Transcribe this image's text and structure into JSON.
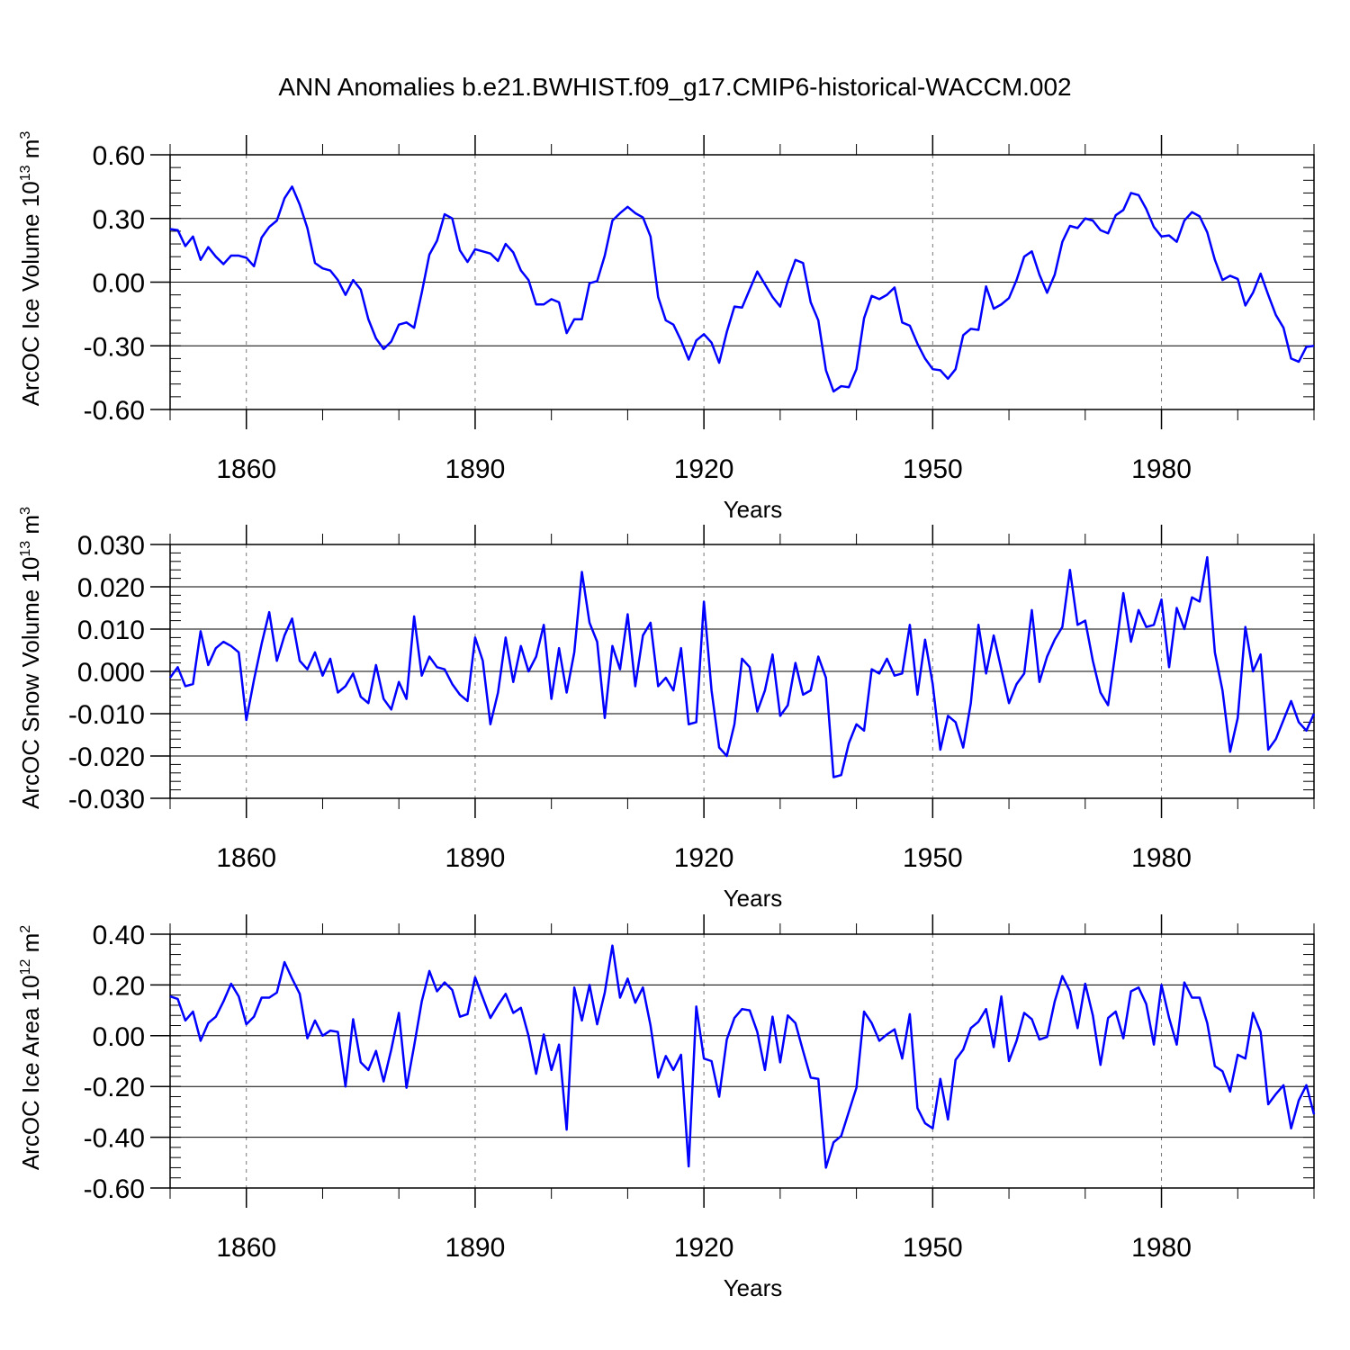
{
  "title": "ANN Anomalies b.e21.BWHIST.f09_g17.CMIP6-historical-WACCM.002",
  "colors": {
    "line": "#0000ff",
    "axis": "#000000",
    "grid": "#777777"
  },
  "chart_data": [
    {
      "type": "line",
      "ylabel": {
        "main": "ArcOC Ice Volume 10",
        "sup": "13",
        "unit": " m",
        "unit_sup": "3"
      },
      "xlabel": "Years",
      "xlim": [
        1850,
        2000
      ],
      "ylim": [
        -0.6,
        0.6
      ],
      "xticks": [
        1860,
        1890,
        1920,
        1950,
        1980
      ],
      "yticks": [
        "0.60",
        "0.30",
        "0.00",
        "-0.30",
        "-0.60"
      ],
      "ytick_values": [
        0.6,
        0.3,
        0.0,
        -0.3,
        -0.6
      ],
      "series": [
        {
          "name": "ArcOC Ice Volume",
          "x_start": 1850,
          "values": [
            0.25,
            0.245,
            0.17,
            0.215,
            0.105,
            0.165,
            0.12,
            0.085,
            0.125,
            0.125,
            0.115,
            0.075,
            0.21,
            0.26,
            0.29,
            0.395,
            0.45,
            0.365,
            0.255,
            0.09,
            0.065,
            0.055,
            0.01,
            -0.06,
            0.01,
            -0.035,
            -0.175,
            -0.265,
            -0.315,
            -0.28,
            -0.2,
            -0.19,
            -0.215,
            -0.05,
            0.13,
            0.195,
            0.32,
            0.3,
            0.15,
            0.095,
            0.155,
            0.145,
            0.135,
            0.1,
            0.18,
            0.14,
            0.055,
            0.01,
            -0.105,
            -0.105,
            -0.08,
            -0.095,
            -0.24,
            -0.175,
            -0.175,
            -0.005,
            0.005,
            0.125,
            0.29,
            0.325,
            0.355,
            0.325,
            0.305,
            0.215,
            -0.07,
            -0.18,
            -0.2,
            -0.275,
            -0.365,
            -0.275,
            -0.245,
            -0.285,
            -0.38,
            -0.235,
            -0.115,
            -0.12,
            -0.035,
            0.05,
            -0.01,
            -0.07,
            -0.115,
            0.005,
            0.105,
            0.09,
            -0.095,
            -0.18,
            -0.415,
            -0.515,
            -0.49,
            -0.495,
            -0.41,
            -0.17,
            -0.065,
            -0.08,
            -0.06,
            -0.025,
            -0.19,
            -0.205,
            -0.29,
            -0.36,
            -0.41,
            -0.415,
            -0.455,
            -0.41,
            -0.25,
            -0.22,
            -0.225,
            -0.02,
            -0.125,
            -0.105,
            -0.075,
            0.01,
            0.12,
            0.145,
            0.035,
            -0.05,
            0.035,
            0.19,
            0.265,
            0.255,
            0.3,
            0.29,
            0.245,
            0.23,
            0.315,
            0.34,
            0.42,
            0.41,
            0.345,
            0.26,
            0.215,
            0.22,
            0.19,
            0.29,
            0.33,
            0.31,
            0.235,
            0.105,
            0.01,
            0.03,
            0.015,
            -0.11,
            -0.05,
            0.04,
            -0.06,
            -0.155,
            -0.215,
            -0.36,
            -0.375,
            -0.305,
            -0.3
          ]
        }
      ]
    },
    {
      "type": "line",
      "ylabel": {
        "main": "ArcOC Snow Volume 10",
        "sup": "13",
        "unit": " m",
        "unit_sup": "3"
      },
      "xlabel": "Years",
      "xlim": [
        1850,
        2000
      ],
      "ylim": [
        -0.03,
        0.03
      ],
      "xticks": [
        1860,
        1890,
        1920,
        1950,
        1980
      ],
      "yticks": [
        "0.030",
        "0.020",
        "0.010",
        "0.000",
        "-0.010",
        "-0.020",
        "-0.030"
      ],
      "ytick_values": [
        0.03,
        0.02,
        0.01,
        0.0,
        -0.01,
        -0.02,
        -0.03
      ],
      "series": [
        {
          "name": "ArcOC Snow Volume",
          "x_start": 1850,
          "values": [
            -0.0015,
            0.001,
            -0.0035,
            -0.003,
            0.0095,
            0.0015,
            0.0055,
            0.007,
            0.006,
            0.0045,
            -0.0115,
            -0.002,
            0.0065,
            0.014,
            0.0025,
            0.0085,
            0.0125,
            0.0025,
            0.0005,
            0.0045,
            -0.001,
            0.003,
            -0.005,
            -0.0035,
            -0.0005,
            -0.006,
            -0.0075,
            0.0015,
            -0.0065,
            -0.009,
            -0.0025,
            -0.0065,
            0.013,
            -0.001,
            0.0035,
            0.001,
            0.0005,
            -0.003,
            -0.0055,
            -0.007,
            0.008,
            0.0025,
            -0.0125,
            -0.005,
            0.008,
            -0.0025,
            0.006,
            0.0,
            0.0035,
            0.011,
            -0.0065,
            0.0055,
            -0.005,
            0.0045,
            0.0235,
            0.0115,
            0.007,
            -0.011,
            0.006,
            0.0005,
            0.0135,
            -0.0035,
            0.0085,
            0.0115,
            -0.0035,
            -0.0015,
            -0.0045,
            0.0055,
            -0.0125,
            -0.012,
            0.0165,
            -0.0045,
            -0.018,
            -0.02,
            -0.0125,
            0.003,
            0.001,
            -0.0095,
            -0.0045,
            0.004,
            -0.0105,
            -0.008,
            0.002,
            -0.0055,
            -0.0045,
            0.0035,
            -0.0015,
            -0.025,
            -0.0245,
            -0.017,
            -0.0125,
            -0.014,
            0.0005,
            -0.0005,
            0.003,
            -0.001,
            -0.0005,
            0.011,
            -0.0055,
            0.0075,
            -0.003,
            -0.0185,
            -0.0105,
            -0.012,
            -0.018,
            -0.0075,
            0.011,
            -0.0005,
            0.0085,
            0.0005,
            -0.0075,
            -0.003,
            -0.0005,
            0.0145,
            -0.0025,
            0.0035,
            0.0075,
            0.0105,
            0.024,
            0.011,
            0.012,
            0.0025,
            -0.005,
            -0.008,
            0.005,
            0.0185,
            0.007,
            0.0145,
            0.0105,
            0.011,
            0.017,
            0.001,
            0.015,
            0.01,
            0.0175,
            0.0165,
            0.027,
            0.0045,
            -0.0045,
            -0.019,
            -0.011,
            0.0105,
            0.0,
            0.004,
            -0.0185,
            -0.016,
            -0.0115,
            -0.007,
            -0.012,
            -0.014,
            -0.01
          ]
        }
      ]
    },
    {
      "type": "line",
      "ylabel": {
        "main": "ArcOC Ice Area 10",
        "sup": "12",
        "unit": " m",
        "unit_sup": "2"
      },
      "xlabel": "Years",
      "xlim": [
        1850,
        2000
      ],
      "ylim": [
        -0.6,
        0.4
      ],
      "xticks": [
        1860,
        1890,
        1920,
        1950,
        1980
      ],
      "yticks": [
        "0.40",
        "0.20",
        "0.00",
        "-0.20",
        "-0.40",
        "-0.60"
      ],
      "ytick_values": [
        0.4,
        0.2,
        0.0,
        -0.2,
        -0.4,
        -0.6
      ],
      "series": [
        {
          "name": "ArcOC Ice Area",
          "x_start": 1850,
          "values": [
            0.155,
            0.145,
            0.06,
            0.095,
            -0.02,
            0.05,
            0.075,
            0.135,
            0.205,
            0.155,
            0.045,
            0.075,
            0.15,
            0.15,
            0.17,
            0.29,
            0.225,
            0.165,
            -0.01,
            0.06,
            0.0,
            0.02,
            0.015,
            -0.2,
            0.065,
            -0.105,
            -0.135,
            -0.06,
            -0.18,
            -0.055,
            0.09,
            -0.205,
            -0.04,
            0.135,
            0.255,
            0.175,
            0.21,
            0.18,
            0.075,
            0.085,
            0.23,
            0.15,
            0.07,
            0.12,
            0.165,
            0.09,
            0.11,
            0.0,
            -0.15,
            0.005,
            -0.135,
            -0.035,
            -0.37,
            0.19,
            0.06,
            0.2,
            0.045,
            0.17,
            0.355,
            0.15,
            0.225,
            0.13,
            0.19,
            0.04,
            -0.165,
            -0.08,
            -0.135,
            -0.075,
            -0.515,
            0.115,
            -0.09,
            -0.1,
            -0.24,
            -0.015,
            0.07,
            0.105,
            0.1,
            0.015,
            -0.135,
            0.075,
            -0.105,
            0.08,
            0.05,
            -0.06,
            -0.165,
            -0.17,
            -0.52,
            -0.42,
            -0.395,
            -0.3,
            -0.205,
            0.095,
            0.05,
            -0.02,
            0.005,
            0.025,
            -0.09,
            0.085,
            -0.285,
            -0.345,
            -0.365,
            -0.17,
            -0.33,
            -0.095,
            -0.055,
            0.03,
            0.055,
            0.105,
            -0.045,
            0.155,
            -0.1,
            -0.02,
            0.09,
            0.065,
            -0.015,
            -0.005,
            0.135,
            0.235,
            0.175,
            0.03,
            0.205,
            0.08,
            -0.115,
            0.07,
            0.095,
            -0.01,
            0.175,
            0.19,
            0.125,
            -0.035,
            0.2,
            0.07,
            -0.035,
            0.21,
            0.15,
            0.15,
            0.05,
            -0.12,
            -0.14,
            -0.22,
            -0.075,
            -0.09,
            0.09,
            0.015,
            -0.27,
            -0.23,
            -0.195,
            -0.365,
            -0.255,
            -0.195,
            -0.31
          ]
        }
      ]
    }
  ]
}
